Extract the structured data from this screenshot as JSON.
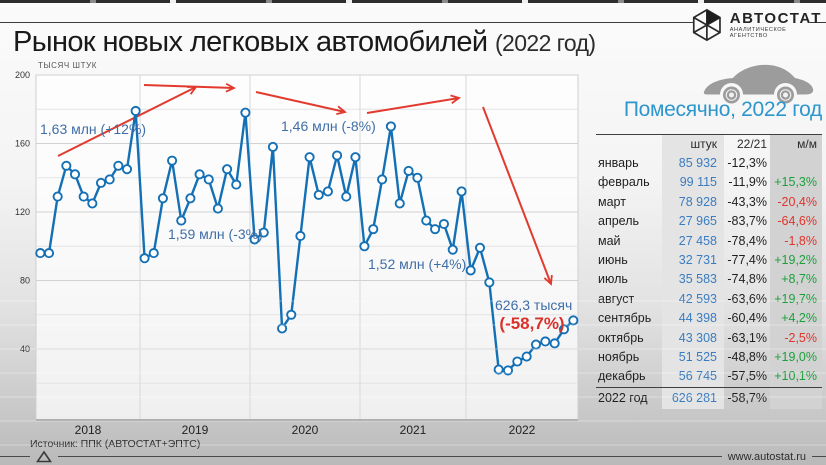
{
  "title": {
    "main": "Рынок новых легковых автомобилей",
    "suffix": "(2022 год)"
  },
  "logo": {
    "name": "АВТОСТАТ",
    "tagline": "АНАЛИТИЧЕСКОЕ АГЕНТСТВО"
  },
  "source": "Источник: ППК (АВТОСТАТ+ЭПТС)",
  "website": "www.autostat.ru",
  "panel": {
    "title": "Помесячно, 2022 год",
    "table": {
      "columns": [
        "",
        "штук",
        "22/21",
        "м/м"
      ],
      "rows": [
        {
          "month": "январь",
          "units": "85 932",
          "yoy": "-12,3%",
          "mom": ""
        },
        {
          "month": "февраль",
          "units": "99 115",
          "yoy": "-11,9%",
          "mom": "+15,3%"
        },
        {
          "month": "март",
          "units": "78 928",
          "yoy": "-43,3%",
          "mom": "-20,4%"
        },
        {
          "month": "апрель",
          "units": "27 965",
          "yoy": "-83,7%",
          "mom": "-64,6%"
        },
        {
          "month": "май",
          "units": "27 458",
          "yoy": "-78,4%",
          "mom": "-1,8%"
        },
        {
          "month": "июнь",
          "units": "32 731",
          "yoy": "-77,4%",
          "mom": "+19,2%"
        },
        {
          "month": "июль",
          "units": "35 583",
          "yoy": "-74,8%",
          "mom": "+8,7%"
        },
        {
          "month": "август",
          "units": "42 593",
          "yoy": "-63,6%",
          "mom": "+19,7%"
        },
        {
          "month": "сентябрь",
          "units": "44 398",
          "yoy": "-60,4%",
          "mom": "+4,2%"
        },
        {
          "month": "октябрь",
          "units": "43 308",
          "yoy": "-63,1%",
          "mom": "-2,5%"
        },
        {
          "month": "ноябрь",
          "units": "51 525",
          "yoy": "-48,8%",
          "mom": "+19,0%"
        },
        {
          "month": "декабрь",
          "units": "56 745",
          "yoy": "-57,5%",
          "mom": "+10,1%"
        }
      ],
      "total": {
        "month": "2022 год",
        "units": "626 281",
        "yoy": "-58,7%",
        "mom": ""
      }
    }
  },
  "chart_data": {
    "type": "line",
    "title": "Рынок новых легковых автомобилей, помесячно 2018-2022",
    "ylabel": "ТЫСЯЧ ШТУК",
    "unit": "тысяч штук",
    "years": [
      "2018",
      "2019",
      "2020",
      "2021",
      "2022"
    ],
    "yticks": [
      40,
      80,
      120,
      160,
      200
    ],
    "ylim": [
      0,
      200
    ],
    "grid": "on",
    "values": [
      96,
      96,
      129,
      147,
      142,
      129,
      125,
      137,
      139,
      147,
      145,
      179,
      93,
      96,
      128,
      150,
      115,
      128,
      142,
      139,
      122,
      145,
      136,
      178,
      104,
      108,
      158,
      52,
      60,
      106,
      152,
      130,
      132,
      153,
      129,
      152,
      100,
      110,
      139,
      170,
      125,
      144,
      140,
      115,
      110,
      113,
      98,
      132,
      85.9,
      99.1,
      78.9,
      28.0,
      27.5,
      32.7,
      35.6,
      42.6,
      44.4,
      43.3,
      51.5,
      56.7
    ],
    "annotations": [
      {
        "year": "2018",
        "label": "1,63 млн (+12%)"
      },
      {
        "year": "2019",
        "label": "1,59 млн (-3%)"
      },
      {
        "year": "2020",
        "label": "1,46 млн (-8%)"
      },
      {
        "year": "2021",
        "label": "1,52 млн (+4%)"
      },
      {
        "year": "2022",
        "label": "626,3 тысяч",
        "label2": "(-58,7%)"
      }
    ],
    "line_color": "#1470b5",
    "arrow_color": "#e23a2e",
    "annotation_color": "#3f6ea8",
    "negative_color": "#d8322b"
  }
}
